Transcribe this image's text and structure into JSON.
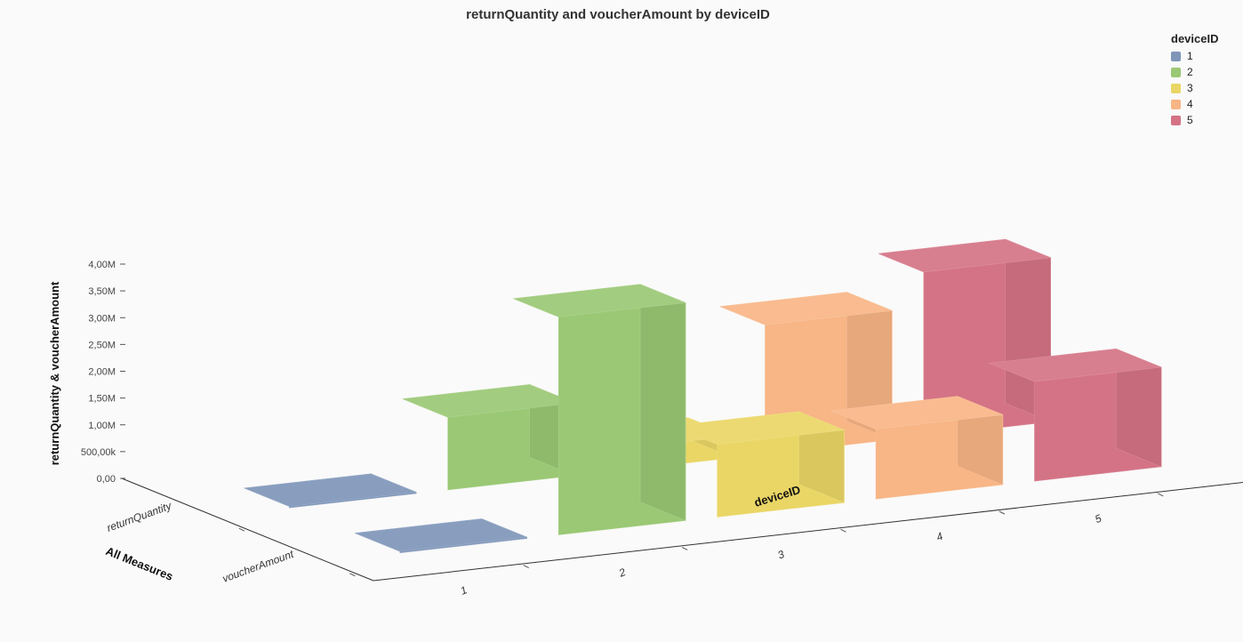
{
  "chart_data": {
    "type": "bar",
    "subtype": "3d-bar",
    "title": "returnQuantity and voucherAmount by deviceID",
    "xlabel": "deviceID",
    "zlabel": "All Measures",
    "ylabel": "returnQuantity & voucherAmount",
    "categories": [
      "1",
      "2",
      "3",
      "4",
      "5"
    ],
    "measures": [
      "returnQuantity",
      "voucherAmount"
    ],
    "ylim": [
      0,
      4000000
    ],
    "yticks": [
      "0,00",
      "500,00k",
      "1,00M",
      "1,50M",
      "2,00M",
      "2,50M",
      "3,00M",
      "3,50M",
      "4,00M"
    ],
    "series": [
      {
        "name": "returnQuantity",
        "values": [
          0,
          1350000,
          400000,
          2400000,
          3050000
        ]
      },
      {
        "name": "voucherAmount",
        "values": [
          0,
          4050000,
          1350000,
          1300000,
          1850000
        ]
      }
    ],
    "legend": {
      "title": "deviceID",
      "position": "top-right",
      "items": [
        {
          "label": "1",
          "color": "#7f96b9"
        },
        {
          "label": "2",
          "color": "#9ac874"
        },
        {
          "label": "3",
          "color": "#ead665"
        },
        {
          "label": "4",
          "color": "#f8b585"
        },
        {
          "label": "5",
          "color": "#d47385"
        }
      ]
    },
    "grid": false
  }
}
